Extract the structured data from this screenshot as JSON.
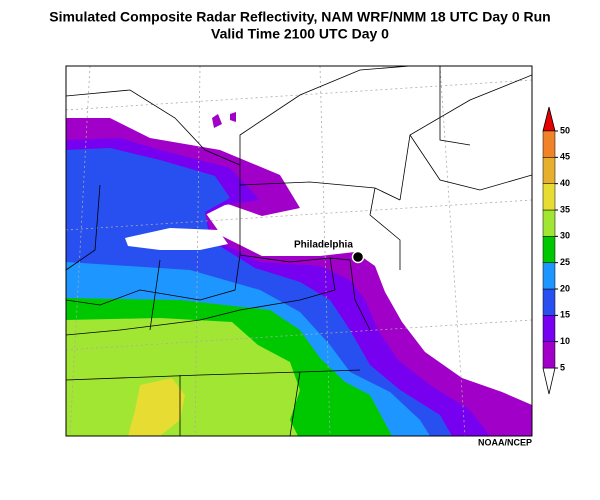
{
  "title": "Simulated Composite Radar Reflectivity, NAM WRF/NMM 18 UTC Day 0 Run",
  "subtitle": "Valid Time 2100 UTC Day 0",
  "city": "Philadelphia",
  "credit": "NOAA/NCEP",
  "colorbar": {
    "ticks": [
      5,
      10,
      15,
      20,
      25,
      30,
      35,
      40,
      45,
      50
    ],
    "colors": [
      "#a000c8",
      "#7800f0",
      "#2850f0",
      "#1e96ff",
      "#00c800",
      "#a0e632",
      "#e6dc32",
      "#e6af2d",
      "#f08228"
    ],
    "under_color": "#ffffff",
    "over_color": "#e60000"
  }
}
